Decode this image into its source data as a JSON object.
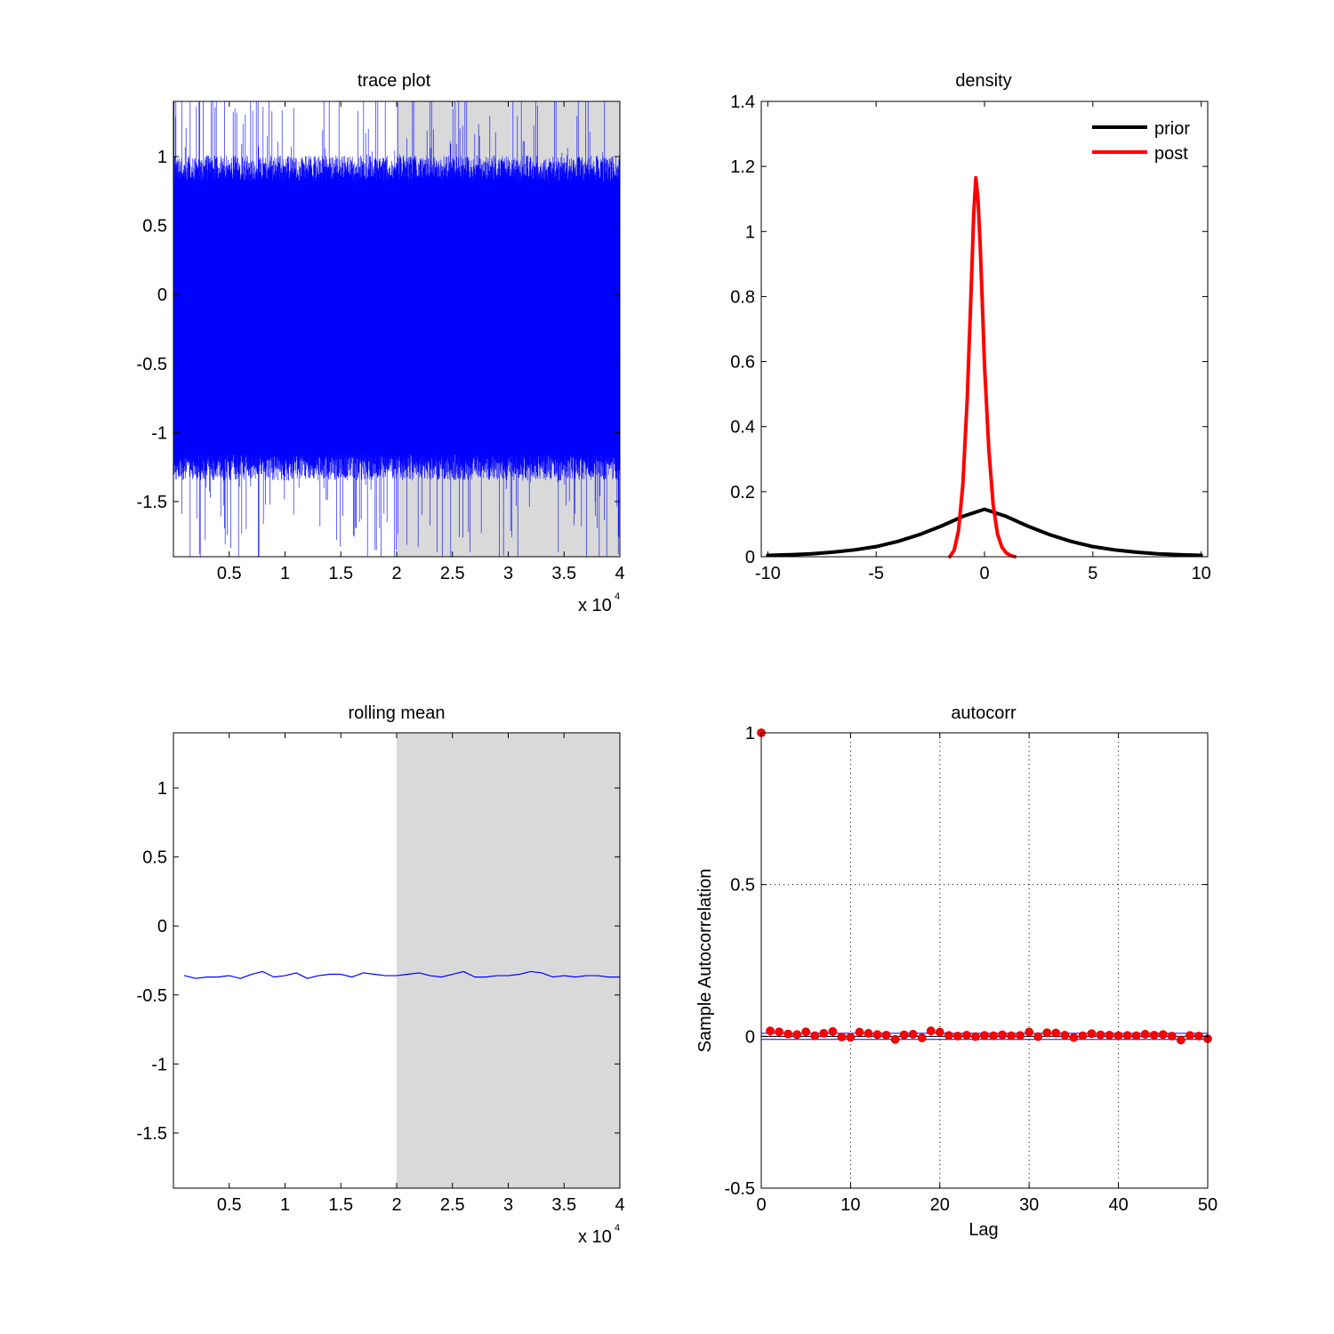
{
  "chart_data": [
    {
      "id": "trace",
      "type": "line",
      "title": "trace plot",
      "xlabel": "",
      "ylabel": "",
      "x_multiplier_label": "x 10",
      "x_multiplier_exponent": "4",
      "xlim": [
        0,
        40000
      ],
      "ylim": [
        -1.9,
        1.4
      ],
      "xticks": [
        5000,
        10000,
        15000,
        20000,
        25000,
        30000,
        35000,
        40000
      ],
      "xtick_labels": [
        "0.5",
        "1",
        "1.5",
        "2",
        "2.5",
        "3",
        "3.5",
        "4"
      ],
      "yticks": [
        -1.5,
        -1,
        -0.5,
        0,
        0.5,
        1
      ],
      "ytick_labels": [
        "-1.5",
        "-1",
        "-0.5",
        "0",
        "0.5",
        "1"
      ],
      "shaded_region": [
        20000,
        40000
      ],
      "shade_color": "#d9d9d9",
      "series": [
        {
          "color": "#0000ff",
          "n_samples": 40000,
          "mean": -0.36,
          "std": 0.38,
          "min": -1.9,
          "max": 1.4
        }
      ],
      "grid": false
    },
    {
      "id": "density",
      "type": "line",
      "title": "density",
      "xlabel": "",
      "ylabel": "",
      "xlim": [
        -10.3,
        10.3
      ],
      "ylim": [
        0,
        1.4
      ],
      "xticks": [
        -10,
        -5,
        0,
        5,
        10
      ],
      "xtick_labels": [
        "-10",
        "-5",
        "0",
        "5",
        "10"
      ],
      "yticks": [
        0,
        0.2,
        0.4,
        0.6,
        0.8,
        1,
        1.2,
        1.4
      ],
      "ytick_labels": [
        "0",
        "0.2",
        "0.4",
        "0.6",
        "0.8",
        "1",
        "1.2",
        "1.4"
      ],
      "legend_position": "top-right",
      "series": [
        {
          "name": "prior",
          "color": "#000000",
          "x": [
            -10,
            -9,
            -8,
            -7,
            -6,
            -5,
            -4,
            -3,
            -2,
            -1,
            0,
            1,
            2,
            3,
            4,
            5,
            6,
            7,
            8,
            9,
            10
          ],
          "y": [
            0.004,
            0.006,
            0.009,
            0.014,
            0.021,
            0.031,
            0.047,
            0.068,
            0.094,
            0.124,
            0.146,
            0.124,
            0.094,
            0.068,
            0.047,
            0.031,
            0.021,
            0.014,
            0.009,
            0.006,
            0.004
          ]
        },
        {
          "name": "post",
          "color": "#ff0000",
          "x": [
            -1.6,
            -1.4,
            -1.2,
            -1.0,
            -0.8,
            -0.6,
            -0.5,
            -0.4,
            -0.3,
            -0.2,
            -0.1,
            0.0,
            0.2,
            0.4,
            0.6,
            0.8,
            1.0,
            1.2,
            1.4
          ],
          "y": [
            0.0,
            0.02,
            0.08,
            0.22,
            0.48,
            0.85,
            1.05,
            1.165,
            1.1,
            0.96,
            0.78,
            0.59,
            0.33,
            0.16,
            0.07,
            0.03,
            0.012,
            0.004,
            0.0
          ]
        }
      ],
      "grid": false
    },
    {
      "id": "rolling",
      "type": "line",
      "title": "rolling mean",
      "xlabel": "",
      "ylabel": "",
      "x_multiplier_label": "x 10",
      "x_multiplier_exponent": "4",
      "xlim": [
        0,
        40000
      ],
      "ylim": [
        -1.9,
        1.4
      ],
      "xticks": [
        5000,
        10000,
        15000,
        20000,
        25000,
        30000,
        35000,
        40000
      ],
      "xtick_labels": [
        "0.5",
        "1",
        "1.5",
        "2",
        "2.5",
        "3",
        "3.5",
        "4"
      ],
      "yticks": [
        -1.5,
        -1,
        -0.5,
        0,
        0.5,
        1
      ],
      "ytick_labels": [
        "-1.5",
        "-1",
        "-0.5",
        "0",
        "0.5",
        "1"
      ],
      "shaded_region": [
        20000,
        40000
      ],
      "shade_color": "#d9d9d9",
      "series": [
        {
          "color": "#0000ff",
          "x": [
            1000,
            2000,
            3000,
            4000,
            5000,
            6000,
            7000,
            8000,
            9000,
            10000,
            11000,
            12000,
            13000,
            14000,
            15000,
            16000,
            17000,
            18000,
            19000,
            20000,
            21000,
            22000,
            23000,
            24000,
            25000,
            26000,
            27000,
            28000,
            29000,
            30000,
            31000,
            32000,
            33000,
            34000,
            35000,
            36000,
            37000,
            38000,
            39000,
            40000
          ],
          "y": [
            -0.36,
            -0.38,
            -0.37,
            -0.37,
            -0.36,
            -0.38,
            -0.35,
            -0.33,
            -0.37,
            -0.36,
            -0.34,
            -0.38,
            -0.36,
            -0.35,
            -0.35,
            -0.37,
            -0.34,
            -0.35,
            -0.36,
            -0.36,
            -0.35,
            -0.34,
            -0.36,
            -0.37,
            -0.35,
            -0.33,
            -0.37,
            -0.37,
            -0.36,
            -0.36,
            -0.35,
            -0.33,
            -0.34,
            -0.37,
            -0.36,
            -0.37,
            -0.36,
            -0.36,
            -0.37,
            -0.37
          ]
        }
      ],
      "grid": false
    },
    {
      "id": "autocorr",
      "type": "scatter",
      "title": "autocorr",
      "xlabel": "Lag",
      "ylabel": "Sample Autocorrelation",
      "xlim": [
        0,
        50
      ],
      "ylim": [
        -0.5,
        1
      ],
      "xticks": [
        0,
        10,
        20,
        30,
        40,
        50
      ],
      "xtick_labels": [
        "0",
        "10",
        "20",
        "30",
        "40",
        "50"
      ],
      "yticks": [
        -0.5,
        0,
        0.5,
        1
      ],
      "ytick_labels": [
        "-0.5",
        "0",
        "0.5",
        "1"
      ],
      "confidence_bounds": [
        0.01,
        -0.01
      ],
      "series": [
        {
          "marker_color": "#ff0000",
          "stem_color": "#0000ff",
          "x": [
            0,
            1,
            2,
            3,
            4,
            5,
            6,
            7,
            8,
            9,
            10,
            11,
            12,
            13,
            14,
            15,
            16,
            17,
            18,
            19,
            20,
            21,
            22,
            23,
            24,
            25,
            26,
            27,
            28,
            29,
            30,
            31,
            32,
            33,
            34,
            35,
            36,
            37,
            38,
            39,
            40,
            41,
            42,
            43,
            44,
            45,
            46,
            47,
            48,
            49,
            50
          ],
          "y": [
            1,
            0.018,
            0.015,
            0.008,
            0.006,
            0.015,
            0.002,
            0.01,
            0.016,
            -0.002,
            -0.003,
            0.014,
            0.01,
            0.006,
            0.004,
            -0.01,
            0.005,
            0.007,
            -0.005,
            0.018,
            0.014,
            0.003,
            0.001,
            0.004,
            -0.001,
            0.003,
            0.002,
            0.005,
            0.002,
            0.003,
            0.014,
            -0.001,
            0.012,
            0.011,
            0.004,
            -0.004,
            0.002,
            0.009,
            0.005,
            0.004,
            0.002,
            0.003,
            0.002,
            0.007,
            0.004,
            0.006,
            0.001,
            -0.012,
            0.003,
            0.001,
            -0.008
          ]
        }
      ],
      "grid": true
    }
  ]
}
